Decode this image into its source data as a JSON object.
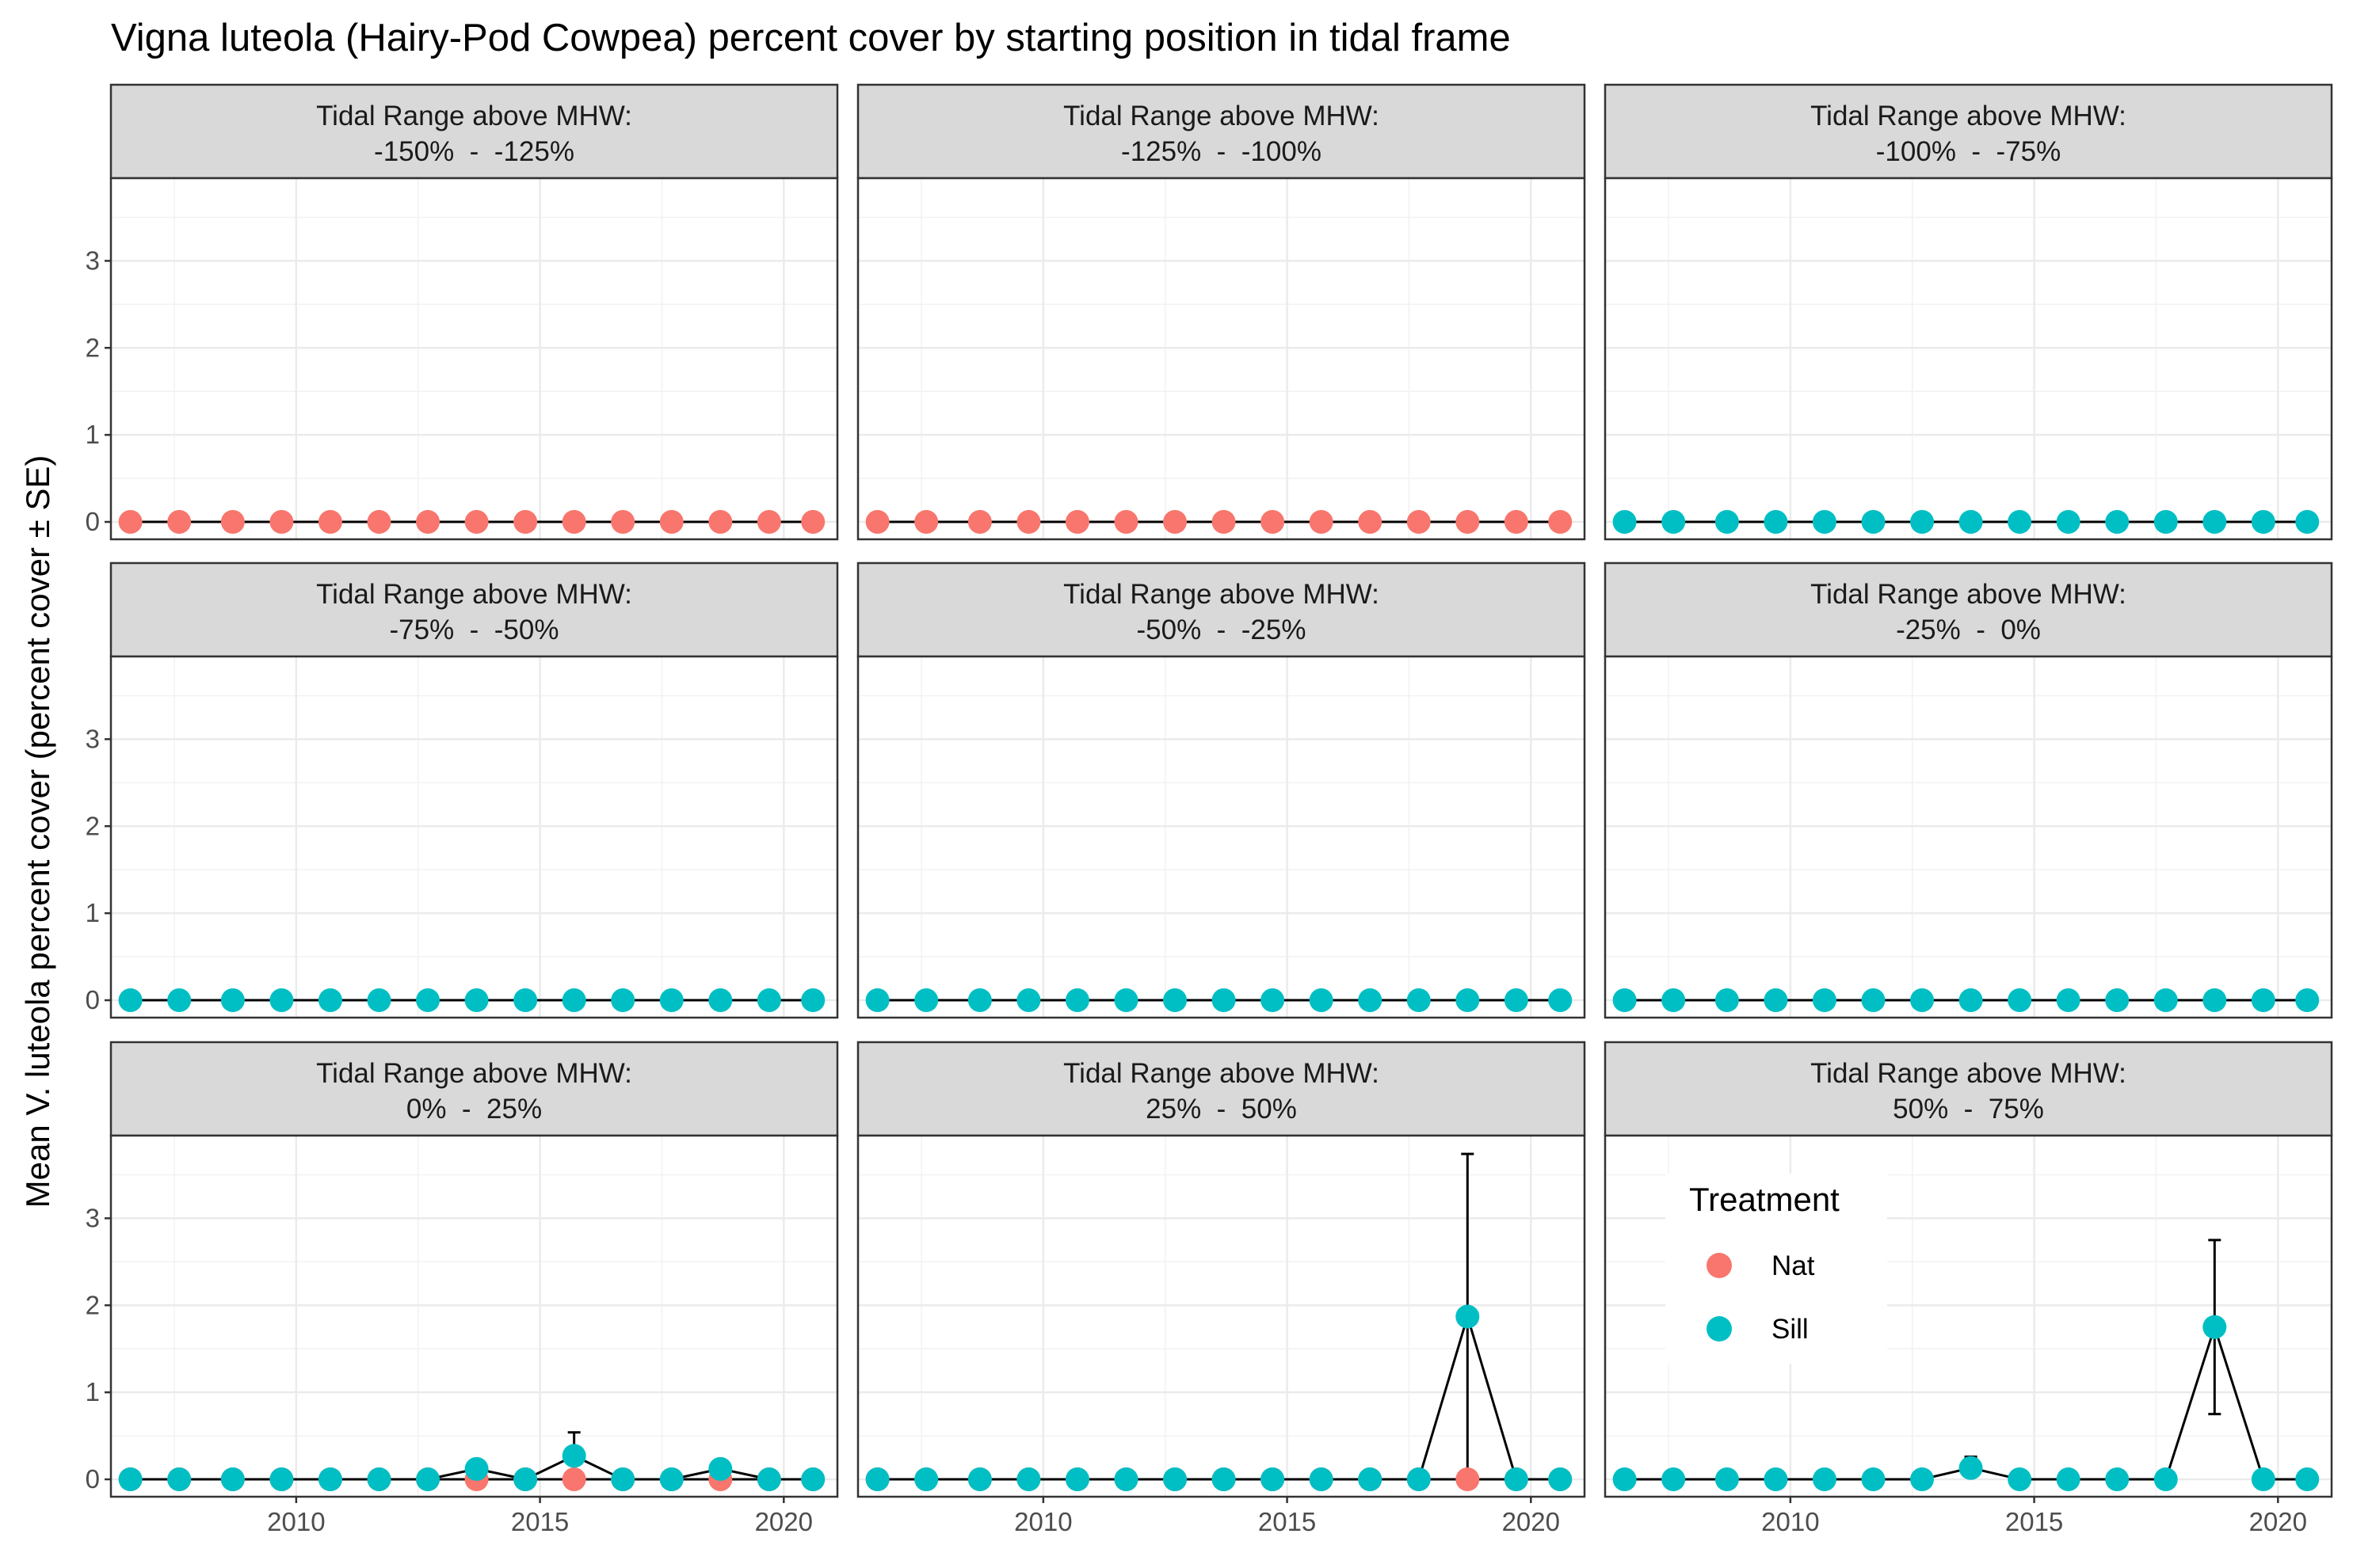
{
  "chart_data": {
    "type": "scatter",
    "title": "Vigna luteola (Hairy-Pod Cowpea) percent cover by starting position in tidal frame",
    "ylabel": "Mean V. luteola percent cover (percent cover ± SE)",
    "xlabel": "",
    "xlim": [
      2006.2,
      2021.1
    ],
    "ylim": [
      -0.2,
      3.95
    ],
    "x_ticks": [
      2010,
      2015,
      2020
    ],
    "y_ticks": [
      0,
      1,
      2,
      3
    ],
    "grid": true,
    "legend": {
      "title": "Treatment",
      "placement": "inside bottom-right panel",
      "entries": [
        {
          "name": "Nat",
          "color": "#F8766D"
        },
        {
          "name": "Sill",
          "color": "#00BFC4"
        }
      ]
    },
    "series_colors": {
      "Nat": "#F8766D",
      "Sill": "#00BFC4"
    },
    "strip_prefix": "Tidal Range above MHW:",
    "years": [
      2006.6,
      2007.6,
      2008.7,
      2009.7,
      2010.7,
      2011.7,
      2012.7,
      2013.7,
      2014.7,
      2015.7,
      2016.7,
      2017.7,
      2018.7,
      2019.7,
      2020.6
    ],
    "panels": [
      {
        "range": "-150%  -  -125%",
        "series": [
          {
            "name": "Nat",
            "values": [
              0,
              0,
              0,
              0,
              0,
              0,
              0,
              0,
              0,
              0,
              0,
              0,
              0,
              0,
              0
            ],
            "se": [
              0,
              0,
              0,
              0,
              0,
              0,
              0,
              0,
              0,
              0,
              0,
              0,
              0,
              0,
              0
            ]
          }
        ]
      },
      {
        "range": "-125%  -  -100%",
        "series": [
          {
            "name": "Nat",
            "values": [
              0,
              0,
              0,
              0,
              0,
              0,
              0,
              0,
              0,
              0,
              0,
              0,
              0,
              0,
              0
            ],
            "se": [
              0,
              0,
              0,
              0,
              0,
              0,
              0,
              0,
              0,
              0,
              0,
              0,
              0,
              0,
              0
            ]
          }
        ]
      },
      {
        "range": "-100%  -  -75%",
        "series": [
          {
            "name": "Sill",
            "values": [
              0,
              0,
              0,
              0,
              0,
              0,
              0,
              0,
              0,
              0,
              0,
              0,
              0,
              0,
              0
            ],
            "se": [
              0,
              0,
              0,
              0,
              0,
              0,
              0,
              0,
              0,
              0,
              0,
              0,
              0,
              0,
              0
            ]
          }
        ]
      },
      {
        "range": "-75%  -  -50%",
        "series": [
          {
            "name": "Sill",
            "values": [
              0,
              0,
              0,
              0,
              0,
              0,
              0,
              0,
              0,
              0,
              0,
              0,
              0,
              0,
              0
            ],
            "se": [
              0,
              0,
              0,
              0,
              0,
              0,
              0,
              0,
              0,
              0,
              0,
              0,
              0,
              0,
              0
            ]
          }
        ]
      },
      {
        "range": "-50%  -  -25%",
        "series": [
          {
            "name": "Sill",
            "values": [
              0,
              0,
              0,
              0,
              0,
              0,
              0,
              0,
              0,
              0,
              0,
              0,
              0,
              0,
              0
            ],
            "se": [
              0,
              0,
              0,
              0,
              0,
              0,
              0,
              0,
              0,
              0,
              0,
              0,
              0,
              0,
              0
            ]
          }
        ]
      },
      {
        "range": "-25%  -  0%",
        "series": [
          {
            "name": "Sill",
            "values": [
              0,
              0,
              0,
              0,
              0,
              0,
              0,
              0,
              0,
              0,
              0,
              0,
              0,
              0,
              0
            ],
            "se": [
              0,
              0,
              0,
              0,
              0,
              0,
              0,
              0,
              0,
              0,
              0,
              0,
              0,
              0,
              0
            ]
          }
        ]
      },
      {
        "range": "0%  -  25%",
        "series": [
          {
            "name": "Nat",
            "values": [
              0,
              0,
              0,
              0,
              0,
              0,
              0,
              0,
              0,
              0,
              0,
              0,
              0,
              0,
              0
            ],
            "se": [
              0,
              0,
              0,
              0,
              0,
              0,
              0,
              0,
              0,
              0,
              0,
              0,
              0,
              0,
              0
            ]
          },
          {
            "name": "Sill",
            "values": [
              0,
              0,
              0,
              0,
              0,
              0,
              0,
              0.12,
              0,
              0.27,
              0,
              0,
              0.12,
              0,
              0
            ],
            "se": [
              0,
              0,
              0,
              0,
              0,
              0,
              0,
              0,
              0,
              0.27,
              0,
              0,
              0,
              0,
              0
            ]
          }
        ]
      },
      {
        "range": "25%  -  50%",
        "series": [
          {
            "name": "Nat",
            "values": [
              0,
              0,
              0,
              0,
              0,
              0,
              0,
              0,
              0,
              0,
              0,
              0,
              0,
              0,
              0
            ],
            "se": [
              0,
              0,
              0,
              0,
              0,
              0,
              0,
              0,
              0,
              0,
              0,
              0,
              0,
              0,
              0
            ]
          },
          {
            "name": "Sill",
            "values": [
              0,
              0,
              0,
              0,
              0,
              0,
              0,
              0,
              0,
              0,
              0,
              0,
              1.87,
              0,
              0
            ],
            "se": [
              0,
              0,
              0,
              0,
              0,
              0,
              0,
              0,
              0,
              0,
              0,
              0,
              1.87,
              0,
              0
            ]
          }
        ]
      },
      {
        "range": "50%  -  75%",
        "series": [
          {
            "name": "Sill",
            "values": [
              0,
              0,
              0,
              0,
              0,
              0,
              0,
              0.13,
              0,
              0,
              0,
              0,
              1.75,
              0,
              0
            ],
            "se": [
              0,
              0,
              0,
              0,
              0,
              0,
              0,
              0.13,
              0,
              0,
              0,
              0,
              1.0,
              0,
              0
            ]
          }
        ]
      }
    ]
  }
}
